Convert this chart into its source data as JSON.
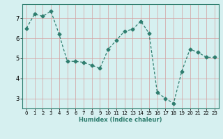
{
  "x": [
    0,
    1,
    2,
    3,
    4,
    5,
    6,
    7,
    8,
    9,
    10,
    11,
    12,
    13,
    14,
    15,
    16,
    17,
    18,
    19,
    20,
    21,
    22,
    23
  ],
  "y": [
    6.5,
    7.2,
    7.1,
    7.35,
    6.2,
    4.85,
    4.85,
    4.8,
    4.65,
    4.5,
    5.45,
    5.9,
    6.35,
    6.45,
    6.85,
    6.25,
    3.3,
    3.0,
    2.75,
    4.35,
    5.45,
    5.3,
    5.05,
    5.05
  ],
  "line_color": "#2e7d6e",
  "marker": "D",
  "marker_size": 2.5,
  "bg_color": "#d6f0f0",
  "grid_color_v": "#d4a0a0",
  "grid_color_h": "#d4a0a0",
  "xlabel": "Humidex (Indice chaleur)",
  "xlim": [
    -0.5,
    23.5
  ],
  "ylim": [
    2.5,
    7.7
  ],
  "yticks": [
    3,
    4,
    5,
    6,
    7
  ],
  "xticks": [
    0,
    1,
    2,
    3,
    4,
    5,
    6,
    7,
    8,
    9,
    10,
    11,
    12,
    13,
    14,
    15,
    16,
    17,
    18,
    19,
    20,
    21,
    22,
    23
  ],
  "xlabel_fontsize": 6.0,
  "tick_fontsize_x": 5.0,
  "tick_fontsize_y": 6.0
}
